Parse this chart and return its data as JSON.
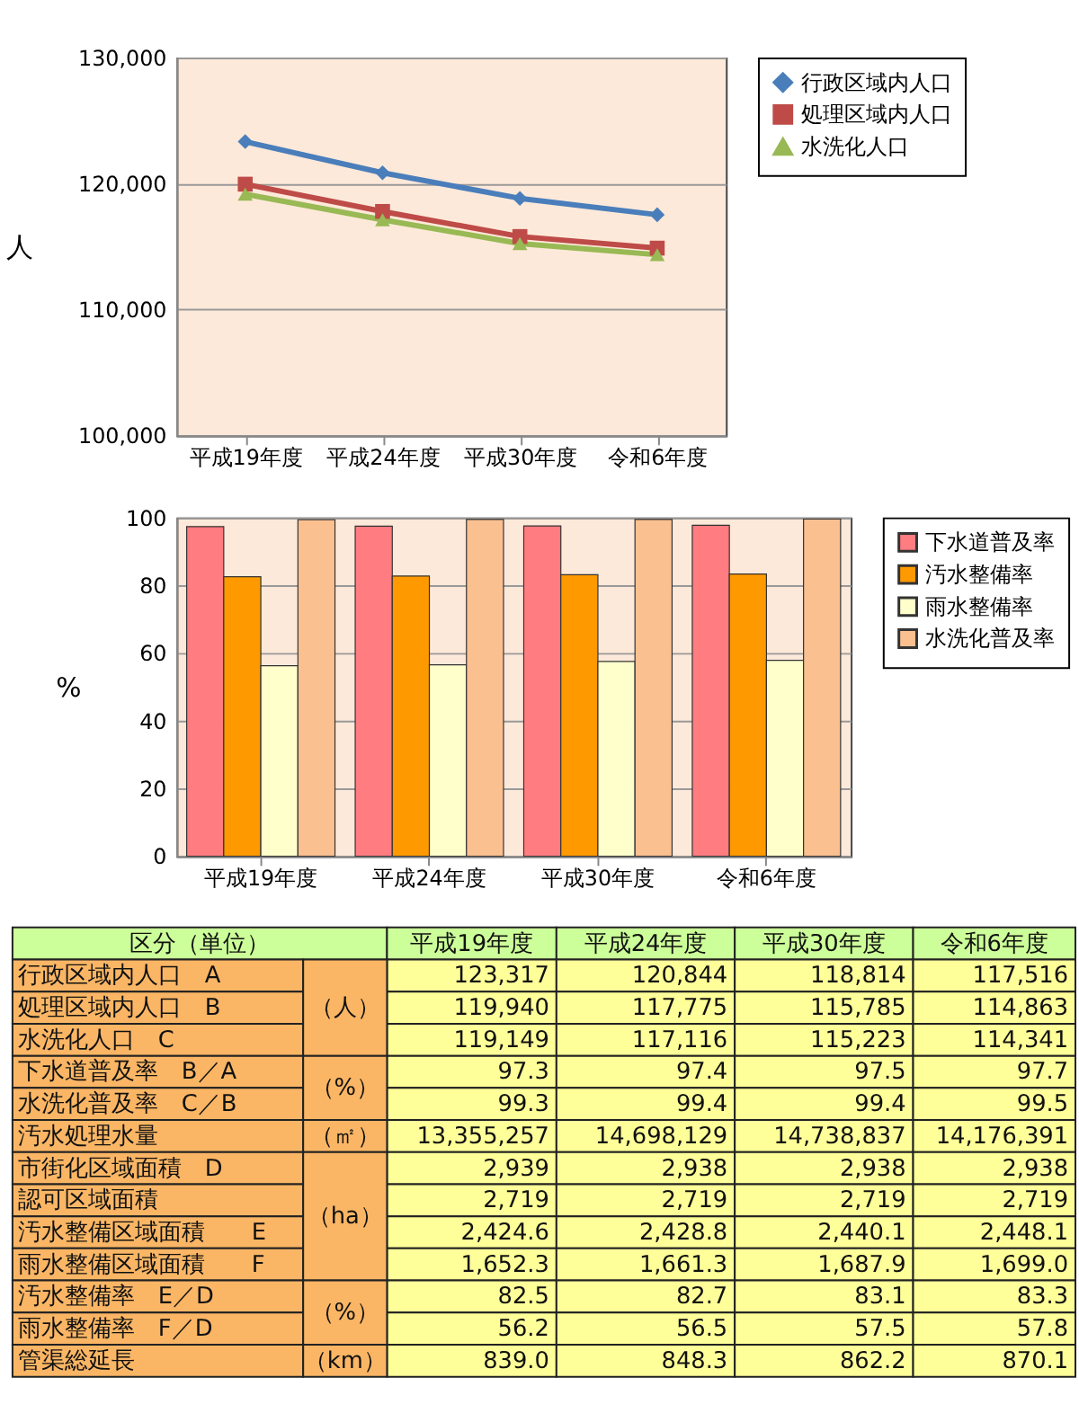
{
  "chart_data": [
    {
      "type": "line",
      "ylabel": "人",
      "categories": [
        "平成19年度",
        "平成24年度",
        "平成30年度",
        "令和6年度"
      ],
      "ylim": [
        100000,
        130000
      ],
      "yticks": [
        {
          "value": 100000,
          "label": "100,000"
        },
        {
          "value": 110000,
          "label": "110,000"
        },
        {
          "value": 120000,
          "label": "120,000"
        },
        {
          "value": 130000,
          "label": "130,000"
        }
      ],
      "grid": "y",
      "legend": "right",
      "series": [
        {
          "name": "行政区域内人口",
          "color": "#4a7ebb",
          "marker": "diamond",
          "values": [
            123317,
            120844,
            118814,
            117516
          ]
        },
        {
          "name": "処理区域内人口",
          "color": "#be4b48",
          "marker": "square",
          "values": [
            119940,
            117775,
            115785,
            114863
          ]
        },
        {
          "name": "水洗化人口",
          "color": "#98b954",
          "marker": "triangle",
          "values": [
            119149,
            117116,
            115223,
            114341
          ]
        }
      ]
    },
    {
      "type": "bar",
      "ylabel": "%",
      "categories": [
        "平成19年度",
        "平成24年度",
        "平成30年度",
        "令和6年度"
      ],
      "ylim": [
        0,
        100
      ],
      "yticks": [
        0,
        20,
        40,
        60,
        80,
        100
      ],
      "grid": "y",
      "legend": "right",
      "series": [
        {
          "name": "下水道普及率",
          "color": "#ff7c80",
          "values": [
            97.3,
            97.4,
            97.5,
            97.7
          ]
        },
        {
          "name": "汚水整備率",
          "color": "#ff9900",
          "values": [
            82.5,
            82.7,
            83.1,
            83.3
          ]
        },
        {
          "name": "雨水整備率",
          "color": "#ffffcc",
          "values": [
            56.2,
            56.5,
            57.5,
            57.8
          ]
        },
        {
          "name": "水洗化普及率",
          "color": "#fac090",
          "values": [
            99.3,
            99.4,
            99.4,
            99.5
          ]
        }
      ]
    },
    {
      "type": "other",
      "title": "区分（単位）",
      "categories": [
        "平成19年度",
        "平成24年度",
        "平成30年度",
        "令和6年度"
      ],
      "y_categories": [
        "行政区域内人口　A",
        "処理区域内人口　B",
        "水洗化人口　C",
        "下水道普及率　B／A",
        "水洗化普及率　C／B",
        "汚水処理水量",
        "市街化区域面積　D",
        "認可区域面積",
        "汚水整備区域面積　　E",
        "雨水整備区域面積　　F",
        "汚水整備率　E／D",
        "雨水整備率　F／D",
        "管渠総延長"
      ],
      "y2_categories": [
        "（人）",
        null,
        null,
        "（%）",
        null,
        "（㎡）",
        "（ha）",
        null,
        null,
        null,
        "（%）",
        null,
        "（km）"
      ],
      "cell_labels": [
        [
          "123,317",
          "120,844",
          "118,814",
          "117,516"
        ],
        [
          "119,940",
          "117,775",
          "115,785",
          "114,863"
        ],
        [
          "119,149",
          "117,116",
          "115,223",
          "114,341"
        ],
        [
          "97.3",
          "97.4",
          "97.5",
          "97.7"
        ],
        [
          "99.3",
          "99.4",
          "99.4",
          "99.5"
        ],
        [
          "13,355,257",
          "14,698,129",
          "14,738,837",
          "14,176,391"
        ],
        [
          "2,939",
          "2,938",
          "2,938",
          "2,938"
        ],
        [
          "2,719",
          "2,719",
          "2,719",
          "2,719"
        ],
        [
          "2,424.6",
          "2,428.8",
          "2,440.1",
          "2,448.1"
        ],
        [
          "1,652.3",
          "1,661.3",
          "1,687.9",
          "1,699.0"
        ],
        [
          "82.5",
          "82.7",
          "83.1",
          "83.3"
        ],
        [
          "56.2",
          "56.5",
          "57.5",
          "57.8"
        ],
        [
          "839.0",
          "848.3",
          "862.2",
          "870.1"
        ]
      ]
    }
  ]
}
